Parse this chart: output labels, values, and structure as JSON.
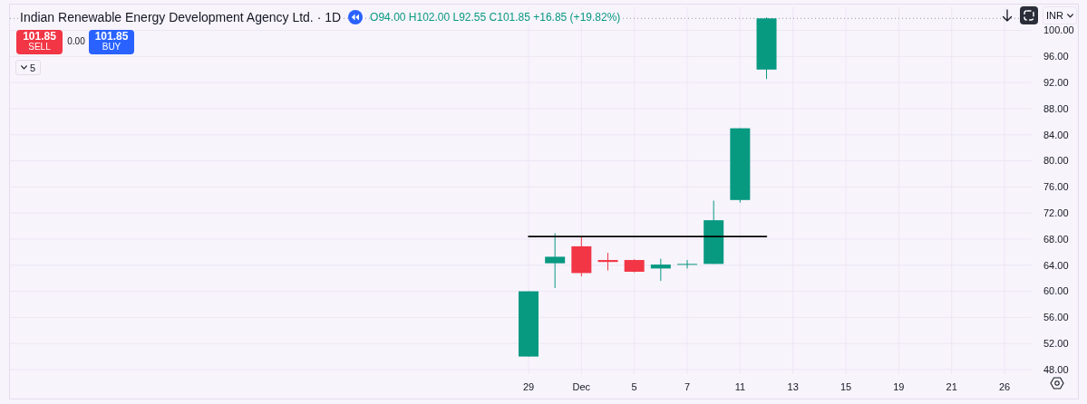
{
  "chart_data": {
    "type": "candlestick",
    "title": "Indian Renewable Energy Development Agency Ltd. · 1D",
    "annotations": [
      "O94.00 H102.00 L92.55 C101.85 +16.85 (+19.82%)",
      "101.85",
      "SELL",
      "0.00",
      "101.85",
      "BUY",
      "5",
      "INR"
    ],
    "categories": [
      "29",
      null,
      "Dec",
      null,
      "5",
      null,
      "7",
      null,
      "11",
      null,
      "13",
      null,
      "15",
      null,
      "19",
      null,
      "21",
      null,
      "26"
    ],
    "ohlc": [
      [
        50,
        60,
        50,
        60
      ],
      [
        64.3,
        68.9,
        60.5,
        65.3
      ],
      [
        66.9,
        68.3,
        62.3,
        62.8
      ],
      [
        64.8,
        65.9,
        63.2,
        64.5
      ],
      [
        64.8,
        64.9,
        62.9,
        63.0
      ],
      [
        63.5,
        65.0,
        61.6,
        64.1
      ],
      [
        64.1,
        64.8,
        63.5,
        64.2
      ],
      [
        64.2,
        73.9,
        64.2,
        70.9
      ],
      [
        74.0,
        85.0,
        73.6,
        85.0
      ],
      [
        94.0,
        102.0,
        92.55,
        101.85
      ],
      null,
      null,
      null,
      null,
      null,
      null,
      null,
      null,
      null
    ],
    "colors": [
      "#089981",
      "#089981",
      "#f23645",
      "#f23645",
      "#f23645",
      "#089981",
      "#089981",
      "#089981",
      "#089981",
      "#089981",
      null,
      null,
      null,
      null,
      null,
      null,
      null,
      null,
      null
    ],
    "series": [
      {
        "type": "line",
        "color": "#000000",
        "values": [
          68.4,
          68.4,
          68.4,
          68.4,
          68.4,
          68.4,
          68.4,
          68.4,
          68.4,
          68.4,
          null,
          null,
          null,
          null,
          null,
          null,
          null,
          null,
          null
        ]
      }
    ],
    "ref_lines": [
      {
        "axis": "y",
        "value": 101.85,
        "color": "#9598a1",
        "line_style": "dotted"
      }
    ],
    "ylim": [
      47.3,
      103.6
    ],
    "yticks": [
      {
        "value": 48,
        "label": "48.00"
      },
      {
        "value": 52,
        "label": "52.00"
      },
      {
        "value": 56,
        "label": "56.00"
      },
      {
        "value": 60,
        "label": "60.00"
      },
      {
        "value": 64,
        "label": "64.00"
      },
      {
        "value": 68,
        "label": "68.00"
      },
      {
        "value": 72,
        "label": "72.00"
      },
      {
        "value": 76,
        "label": "76.00"
      },
      {
        "value": 80,
        "label": "80.00"
      },
      {
        "value": 84,
        "label": "84.00"
      },
      {
        "value": 88,
        "label": "88.00"
      },
      {
        "value": 92,
        "label": "92.00"
      },
      {
        "value": 96,
        "label": "96.00"
      },
      {
        "value": 100,
        "label": "100.00"
      }
    ],
    "grid": true
  }
}
